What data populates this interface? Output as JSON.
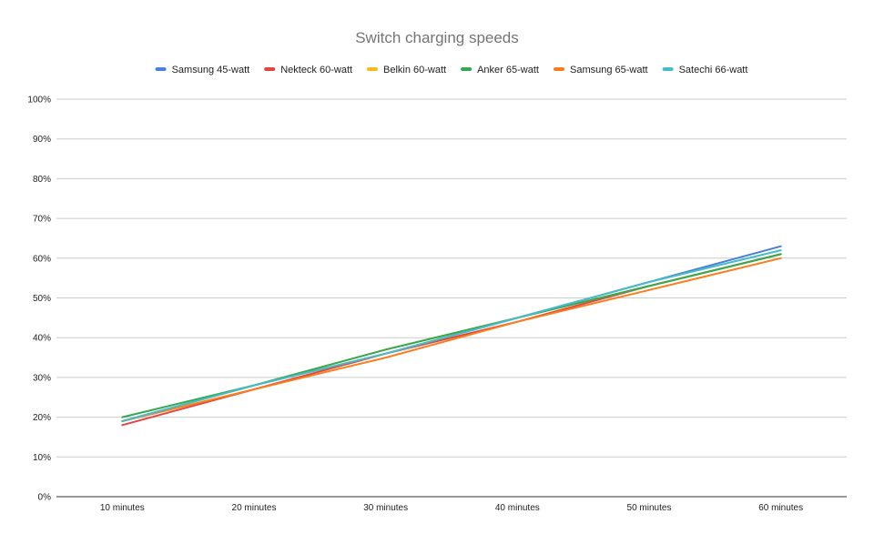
{
  "chart_data": {
    "type": "line",
    "title": "Switch charging speeds",
    "xlabel": "",
    "ylabel": "",
    "categories": [
      "10 minutes",
      "20 minutes",
      "30 minutes",
      "40 minutes",
      "50 minutes",
      "60 minutes"
    ],
    "y_ticks": [
      "0%",
      "10%",
      "20%",
      "30%",
      "40%",
      "50%",
      "60%",
      "70%",
      "80%",
      "90%",
      "100%"
    ],
    "ylim": [
      0,
      100
    ],
    "y_unit": "%",
    "grid": true,
    "legend_position": "top",
    "series": [
      {
        "name": "Samsung 45-watt",
        "color": "#4a7fdc",
        "values": [
          19,
          28,
          36,
          45,
          54,
          63
        ]
      },
      {
        "name": "Nekteck 60-watt",
        "color": "#e2463d",
        "values": [
          18,
          27,
          36,
          44,
          53,
          61
        ]
      },
      {
        "name": "Belkin 60-watt",
        "color": "#f5bd18",
        "values": [
          19,
          28,
          37,
          45,
          53,
          61
        ]
      },
      {
        "name": "Anker 65-watt",
        "color": "#35a853",
        "values": [
          20,
          28,
          37,
          45,
          53,
          61
        ]
      },
      {
        "name": "Samsung 65-watt",
        "color": "#fa7d1e",
        "values": [
          19,
          27,
          35,
          44,
          52,
          60
        ]
      },
      {
        "name": "Satechi 66-watt",
        "color": "#47bcc6",
        "values": [
          19,
          28,
          36,
          45,
          54,
          62
        ]
      }
    ]
  }
}
